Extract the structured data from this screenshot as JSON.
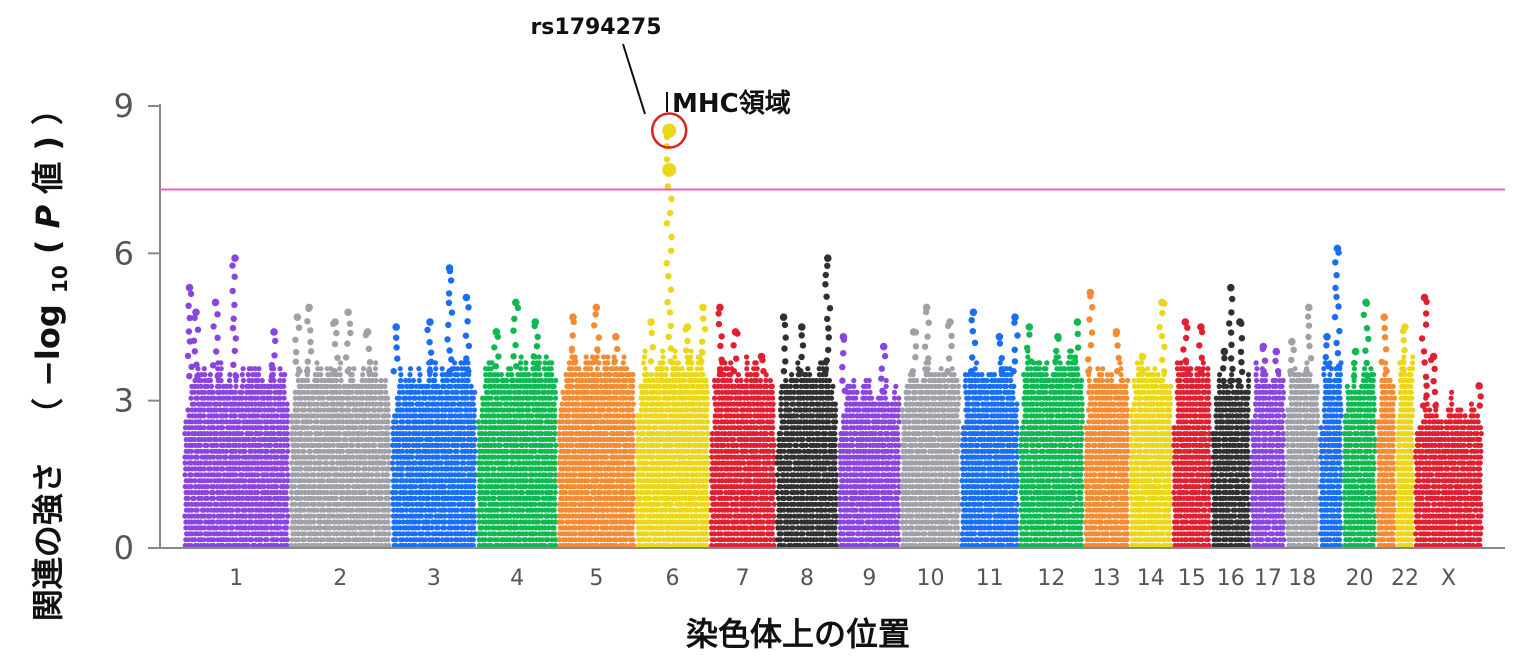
{
  "chart_data": {
    "type": "scatter",
    "subtype": "manhattan",
    "xlabel": "染色体上の位置",
    "ylabel_main": "関連の強さ",
    "ylabel_expr": {
      "open": "（",
      "prefix": "−log",
      "sub": "10",
      "paren_open": "(",
      "p": "P",
      "suffix": "値",
      "paren_close": ")",
      "close": "）"
    },
    "ylim": [
      0,
      9.3
    ],
    "yticks": [
      0,
      3,
      6,
      9
    ],
    "significance_line": 7.3,
    "significance_color": "#f060b0",
    "annotations": {
      "snp": "rs1794275",
      "region": "MHC領域",
      "peak_value": 8.5,
      "peak_chromosome": "6"
    },
    "series": [
      {
        "chr": "1",
        "color": "#8a44e0",
        "label": "1",
        "start": 0.0,
        "end": 0.082,
        "base": 3.5,
        "tops": [
          [
            0.005,
            5.3
          ],
          [
            0.01,
            4.8
          ],
          [
            0.025,
            5.0
          ],
          [
            0.04,
            5.9
          ],
          [
            0.07,
            4.4
          ]
        ]
      },
      {
        "chr": "2",
        "color": "#a0a0a8",
        "label": "2",
        "start": 0.082,
        "end": 0.16,
        "base": 3.6,
        "tops": [
          [
            0.006,
            4.7
          ],
          [
            0.015,
            4.9
          ],
          [
            0.035,
            4.6
          ],
          [
            0.045,
            4.8
          ],
          [
            0.06,
            4.4
          ]
        ]
      },
      {
        "chr": "3",
        "color": "#1a6ef5",
        "label": "3",
        "start": 0.16,
        "end": 0.226,
        "base": 3.6,
        "tops": [
          [
            0.004,
            4.5
          ],
          [
            0.03,
            4.6
          ],
          [
            0.045,
            5.7
          ],
          [
            0.058,
            5.1
          ]
        ]
      },
      {
        "chr": "4",
        "color": "#10b850",
        "label": "4",
        "start": 0.226,
        "end": 0.288,
        "base": 3.7,
        "tops": [
          [
            0.015,
            4.4
          ],
          [
            0.03,
            5.0
          ],
          [
            0.045,
            4.6
          ]
        ]
      },
      {
        "chr": "5",
        "color": "#f58a30",
        "label": "5",
        "start": 0.288,
        "end": 0.348,
        "base": 3.8,
        "tops": [
          [
            0.012,
            4.7
          ],
          [
            0.03,
            4.9
          ],
          [
            0.045,
            4.3
          ]
        ]
      },
      {
        "chr": "6",
        "color": "#ecd618",
        "label": "6",
        "start": 0.348,
        "end": 0.405,
        "base": 3.8,
        "tops": [
          [
            0.012,
            4.6
          ],
          [
            0.026,
            8.5
          ],
          [
            0.04,
            4.5
          ],
          [
            0.052,
            4.9
          ]
        ]
      },
      {
        "chr": "7",
        "color": "#e02030",
        "label": "7",
        "start": 0.405,
        "end": 0.456,
        "base": 3.6,
        "tops": [
          [
            0.008,
            4.9
          ],
          [
            0.02,
            4.4
          ],
          [
            0.04,
            3.9
          ]
        ]
      },
      {
        "chr": "8",
        "color": "#303030",
        "label": "8",
        "start": 0.456,
        "end": 0.504,
        "base": 3.6,
        "tops": [
          [
            0.006,
            4.7
          ],
          [
            0.02,
            4.5
          ],
          [
            0.04,
            5.9
          ]
        ]
      },
      {
        "chr": "9",
        "color": "#8a44e0",
        "label": "9",
        "start": 0.504,
        "end": 0.552,
        "base": 3.2,
        "tops": [
          [
            0.004,
            4.3
          ],
          [
            0.035,
            4.1
          ]
        ]
      },
      {
        "chr": "10",
        "color": "#a0a0a8",
        "label": "10",
        "start": 0.552,
        "end": 0.598,
        "base": 3.6,
        "tops": [
          [
            0.01,
            4.4
          ],
          [
            0.02,
            4.9
          ],
          [
            0.038,
            4.6
          ]
        ]
      },
      {
        "chr": "11",
        "color": "#1a6ef5",
        "label": "11",
        "start": 0.598,
        "end": 0.643,
        "base": 3.6,
        "tops": [
          [
            0.01,
            4.8
          ],
          [
            0.03,
            4.3
          ],
          [
            0.042,
            4.7
          ]
        ]
      },
      {
        "chr": "12",
        "color": "#10b850",
        "label": "12",
        "start": 0.643,
        "end": 0.693,
        "base": 3.8,
        "tops": [
          [
            0.008,
            4.5
          ],
          [
            0.03,
            4.3
          ],
          [
            0.045,
            4.6
          ]
        ]
      },
      {
        "chr": "13",
        "color": "#f58a30",
        "label": "13",
        "start": 0.693,
        "end": 0.728,
        "base": 3.6,
        "tops": [
          [
            0.005,
            5.2
          ],
          [
            0.025,
            4.4
          ]
        ]
      },
      {
        "chr": "14",
        "color": "#ecd618",
        "label": "14",
        "start": 0.728,
        "end": 0.761,
        "base": 3.6,
        "tops": [
          [
            0.01,
            3.9
          ],
          [
            0.025,
            5.0
          ]
        ]
      },
      {
        "chr": "15",
        "color": "#e02030",
        "label": "15",
        "start": 0.761,
        "end": 0.791,
        "base": 3.6,
        "tops": [
          [
            0.01,
            4.6
          ],
          [
            0.022,
            4.5
          ]
        ]
      },
      {
        "chr": "16",
        "color": "#303030",
        "label": "16",
        "start": 0.791,
        "end": 0.821,
        "base": 3.4,
        "tops": [
          [
            0.01,
            4.0
          ],
          [
            0.015,
            5.3
          ],
          [
            0.022,
            4.6
          ]
        ]
      },
      {
        "chr": "17",
        "color": "#8a44e0",
        "label": "17",
        "start": 0.821,
        "end": 0.848,
        "base": 3.6,
        "tops": [
          [
            0.01,
            4.1
          ],
          [
            0.02,
            4.0
          ]
        ]
      },
      {
        "chr": "18",
        "color": "#a0a0a8",
        "label": "18",
        "start": 0.848,
        "end": 0.874,
        "base": 3.6,
        "tops": [
          [
            0.005,
            4.2
          ],
          [
            0.018,
            4.9
          ]
        ]
      },
      {
        "chr": "19",
        "color": "#1a6ef5",
        "label": "",
        "start": 0.874,
        "end": 0.892,
        "base": 3.7,
        "tops": [
          [
            0.006,
            4.3
          ],
          [
            0.014,
            6.1
          ]
        ]
      },
      {
        "chr": "20",
        "color": "#10b850",
        "label": "20",
        "start": 0.892,
        "end": 0.918,
        "base": 3.5,
        "tops": [
          [
            0.01,
            4.0
          ],
          [
            0.018,
            5.0
          ]
        ]
      },
      {
        "chr": "21",
        "color": "#f58a30",
        "label": "",
        "start": 0.918,
        "end": 0.933,
        "base": 3.6,
        "tops": [
          [
            0.006,
            4.7
          ]
        ]
      },
      {
        "chr": "22",
        "color": "#ecd618",
        "label": "22",
        "start": 0.933,
        "end": 0.947,
        "base": 3.6,
        "tops": [
          [
            0.007,
            4.5
          ]
        ]
      },
      {
        "chr": "X",
        "color": "#e02030",
        "label": "X",
        "start": 0.947,
        "end": 1.0,
        "base": 2.9,
        "tops": [
          [
            0.008,
            5.1
          ],
          [
            0.015,
            3.9
          ],
          [
            0.05,
            3.3
          ]
        ]
      }
    ]
  }
}
